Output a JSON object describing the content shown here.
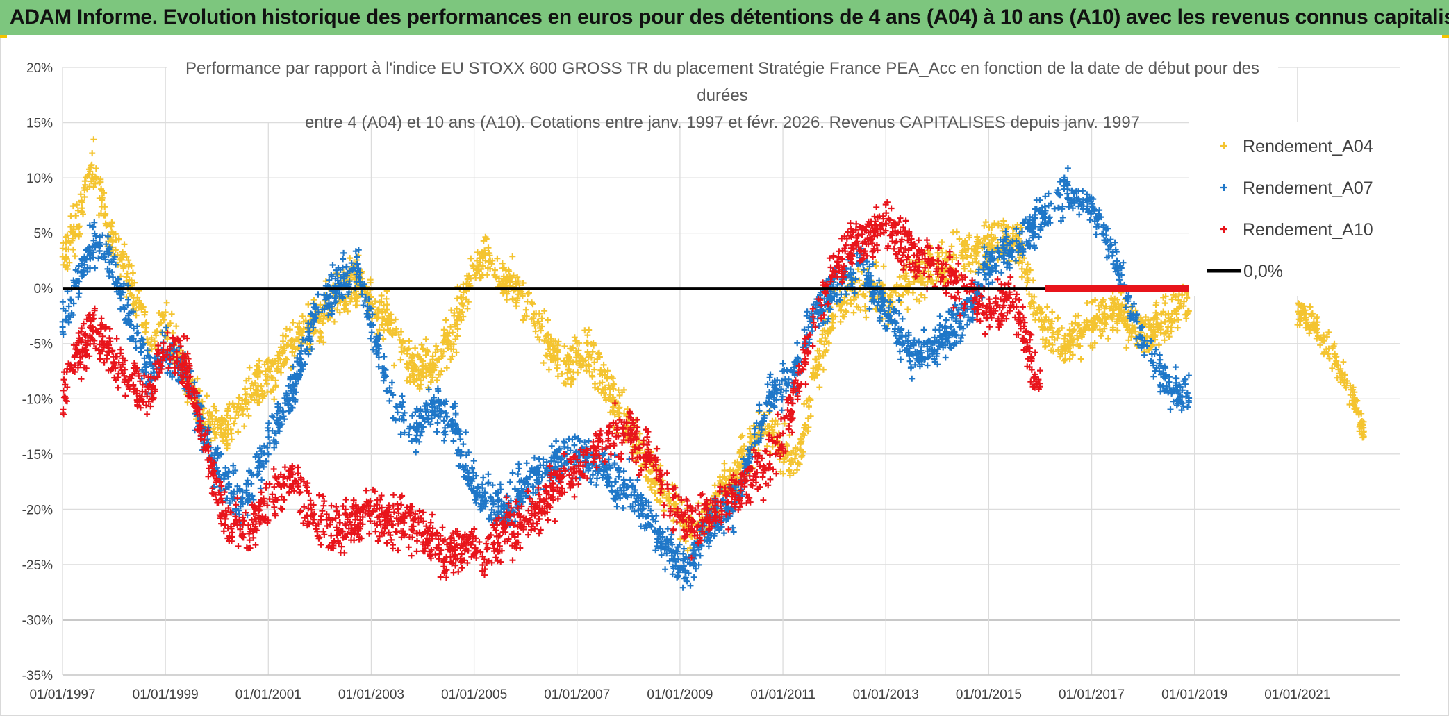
{
  "banner": {
    "title": "ADAM Informe. Evolution historique des performances en euros pour des détentions de 4 ans (A04) à 10 ans (A10) avec les revenus connus capitalisés"
  },
  "chart_data": {
    "type": "scatter",
    "title_lines": [
      "Performance par rapport à l'indice EU STOXX 600 GROSS TR  du placement Stratégie France PEA_Acc en fonction de la date de début pour des",
      "durées",
      "entre 4 (A04) et 10 ans (A10). Cotations entre janv. 1997 et févr. 2026. Revenus CAPITALISES depuis janv. 1997"
    ],
    "xlim": [
      1997.0,
      2023.0
    ],
    "ylim": [
      -35,
      20
    ],
    "x_tick_labels": [
      "01/01/1997",
      "01/01/1999",
      "01/01/2001",
      "01/01/2003",
      "01/01/2005",
      "01/01/2007",
      "01/01/2009",
      "01/01/2011",
      "01/01/2013",
      "01/01/2015",
      "01/01/2017",
      "01/01/2019",
      "01/01/2021"
    ],
    "y_ticks": [
      20,
      15,
      10,
      5,
      0,
      -5,
      -10,
      -15,
      -20,
      -25,
      -30,
      -35
    ],
    "y_tick_labels": [
      "20%",
      "15%",
      "10%",
      "5%",
      "0%",
      "-5%",
      "-10%",
      "-15%",
      "-20%",
      "-25%",
      "-30%",
      "-35%"
    ],
    "series": [
      {
        "name": "Rendement_A04",
        "color": "#f4c430",
        "marker": "+",
        "spread": 1.5,
        "points": [
          [
            1997.0,
            3
          ],
          [
            1997.3,
            6
          ],
          [
            1997.6,
            11
          ],
          [
            1997.9,
            5
          ],
          [
            1998.3,
            1
          ],
          [
            1998.7,
            -5
          ],
          [
            1999.0,
            -3
          ],
          [
            1999.4,
            -8
          ],
          [
            1999.8,
            -12
          ],
          [
            2000.2,
            -13
          ],
          [
            2000.6,
            -10
          ],
          [
            2001.0,
            -8
          ],
          [
            2001.5,
            -5
          ],
          [
            2001.9,
            -3
          ],
          [
            2002.3,
            -1
          ],
          [
            2002.7,
            1
          ],
          [
            2003.0,
            -1
          ],
          [
            2003.4,
            -4
          ],
          [
            2003.8,
            -7
          ],
          [
            2004.2,
            -7
          ],
          [
            2004.6,
            -4
          ],
          [
            2004.9,
            1
          ],
          [
            2005.2,
            3
          ],
          [
            2005.6,
            1
          ],
          [
            2006.0,
            -1
          ],
          [
            2006.4,
            -5
          ],
          [
            2006.8,
            -7
          ],
          [
            2007.2,
            -6
          ],
          [
            2007.6,
            -9
          ],
          [
            2008.0,
            -13
          ],
          [
            2008.4,
            -16
          ],
          [
            2008.8,
            -19
          ],
          [
            2009.2,
            -22
          ],
          [
            2009.6,
            -20
          ],
          [
            2010.0,
            -17
          ],
          [
            2010.4,
            -14
          ],
          [
            2010.7,
            -12
          ],
          [
            2011.0,
            -15
          ],
          [
            2011.3,
            -16
          ],
          [
            2011.6,
            -8
          ],
          [
            2012.0,
            -2
          ],
          [
            2012.5,
            0
          ],
          [
            2013.0,
            -1
          ],
          [
            2013.5,
            1
          ],
          [
            2014.0,
            2
          ],
          [
            2014.5,
            3
          ],
          [
            2015.0,
            4
          ],
          [
            2015.5,
            5
          ],
          [
            2016.0,
            -3
          ],
          [
            2016.5,
            -5
          ],
          [
            2017.0,
            -3
          ],
          [
            2017.5,
            -2
          ],
          [
            2018.0,
            -4
          ],
          [
            2018.5,
            -3
          ],
          [
            2018.9,
            -1
          ]
        ],
        "late_points": [
          [
            2021.0,
            -2
          ],
          [
            2021.4,
            -4
          ],
          [
            2021.8,
            -7
          ],
          [
            2022.1,
            -10
          ],
          [
            2022.3,
            -13
          ]
        ]
      },
      {
        "name": "Rendement_A07",
        "color": "#1f77c8",
        "marker": "+",
        "spread": 1.4,
        "points": [
          [
            1997.0,
            -3
          ],
          [
            1997.3,
            1
          ],
          [
            1997.6,
            4
          ],
          [
            1997.9,
            3
          ],
          [
            1998.3,
            -3
          ],
          [
            1998.7,
            -8
          ],
          [
            1999.0,
            -5
          ],
          [
            1999.4,
            -8
          ],
          [
            1999.8,
            -14
          ],
          [
            2000.2,
            -18
          ],
          [
            2000.6,
            -19
          ],
          [
            2001.0,
            -14
          ],
          [
            2001.5,
            -9
          ],
          [
            2001.9,
            -2
          ],
          [
            2002.3,
            0
          ],
          [
            2002.7,
            2
          ],
          [
            2003.0,
            -3
          ],
          [
            2003.4,
            -10
          ],
          [
            2003.8,
            -13
          ],
          [
            2004.2,
            -11
          ],
          [
            2004.6,
            -12
          ],
          [
            2004.9,
            -17
          ],
          [
            2005.2,
            -19
          ],
          [
            2005.6,
            -20
          ],
          [
            2006.0,
            -18
          ],
          [
            2006.4,
            -16
          ],
          [
            2006.8,
            -15
          ],
          [
            2007.2,
            -15
          ],
          [
            2007.6,
            -17
          ],
          [
            2008.0,
            -18
          ],
          [
            2008.4,
            -21
          ],
          [
            2008.8,
            -24
          ],
          [
            2009.2,
            -25
          ],
          [
            2009.6,
            -21
          ],
          [
            2010.0,
            -20
          ],
          [
            2010.4,
            -15
          ],
          [
            2010.7,
            -10
          ],
          [
            2011.0,
            -9
          ],
          [
            2011.3,
            -7
          ],
          [
            2011.6,
            -2
          ],
          [
            2012.0,
            0
          ],
          [
            2012.5,
            2
          ],
          [
            2013.0,
            -2
          ],
          [
            2013.5,
            -6
          ],
          [
            2014.0,
            -5
          ],
          [
            2014.5,
            -3
          ],
          [
            2015.0,
            2
          ],
          [
            2015.5,
            4
          ],
          [
            2016.0,
            6
          ],
          [
            2016.5,
            9
          ],
          [
            2017.0,
            7
          ],
          [
            2017.5,
            2
          ],
          [
            2018.0,
            -5
          ],
          [
            2018.5,
            -9
          ],
          [
            2018.9,
            -10
          ]
        ]
      },
      {
        "name": "Rendement_A10",
        "color": "#e8141b",
        "marker": "+",
        "spread": 1.6,
        "points": [
          [
            1997.0,
            -10
          ],
          [
            1997.3,
            -6
          ],
          [
            1997.6,
            -4
          ],
          [
            1997.9,
            -6
          ],
          [
            1998.3,
            -8
          ],
          [
            1998.7,
            -10
          ],
          [
            1999.0,
            -5
          ],
          [
            1999.4,
            -7
          ],
          [
            1999.8,
            -15
          ],
          [
            2000.2,
            -21
          ],
          [
            2000.6,
            -22
          ],
          [
            2001.0,
            -19
          ],
          [
            2001.5,
            -17
          ],
          [
            2001.9,
            -21
          ],
          [
            2002.3,
            -22
          ],
          [
            2002.7,
            -21
          ],
          [
            2003.0,
            -20
          ],
          [
            2003.4,
            -21
          ],
          [
            2003.8,
            -21
          ],
          [
            2004.2,
            -23
          ],
          [
            2004.6,
            -24
          ],
          [
            2004.9,
            -23
          ],
          [
            2005.2,
            -24
          ],
          [
            2005.6,
            -22
          ],
          [
            2006.0,
            -21
          ],
          [
            2006.4,
            -19
          ],
          [
            2006.8,
            -17
          ],
          [
            2007.2,
            -16
          ],
          [
            2007.6,
            -13
          ],
          [
            2008.0,
            -13
          ],
          [
            2008.4,
            -15
          ],
          [
            2008.8,
            -19
          ],
          [
            2009.2,
            -22
          ],
          [
            2009.6,
            -20
          ],
          [
            2010.0,
            -19
          ],
          [
            2010.4,
            -17
          ],
          [
            2010.7,
            -16
          ],
          [
            2011.0,
            -13
          ],
          [
            2011.3,
            -9
          ],
          [
            2011.6,
            -3
          ],
          [
            2012.0,
            2
          ],
          [
            2012.5,
            4
          ],
          [
            2013.0,
            6
          ],
          [
            2013.5,
            3
          ],
          [
            2014.0,
            2
          ],
          [
            2014.5,
            0
          ],
          [
            2015.0,
            -2
          ],
          [
            2015.5,
            -1
          ],
          [
            2015.8,
            -6
          ],
          [
            2016.0,
            -9
          ]
        ],
        "flat_segment": {
          "from": 2016.1,
          "to": 2018.9,
          "value": 0
        }
      }
    ],
    "reference_line": {
      "name": "0,0%",
      "value": 0,
      "color": "#000000"
    },
    "legend": {
      "position": "right",
      "entries": [
        {
          "label": "Rendement_A04",
          "color": "#f4c430",
          "marker": "+"
        },
        {
          "label": "Rendement_A07",
          "color": "#1f77c8",
          "marker": "+"
        },
        {
          "label": "Rendement_A10",
          "color": "#e8141b",
          "marker": "+"
        },
        {
          "label": "0,0%",
          "color": "#000000",
          "marker": "line"
        }
      ]
    }
  }
}
